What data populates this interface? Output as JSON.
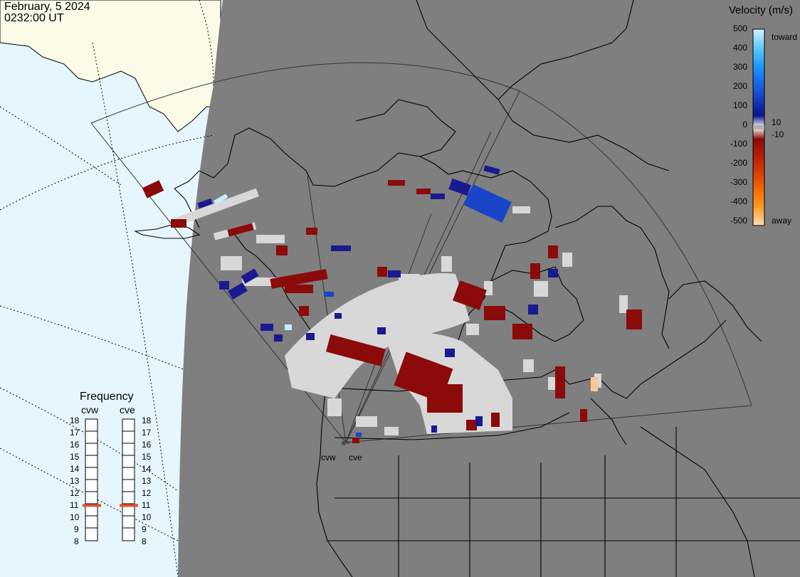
{
  "header": {
    "date": "February, 5 2024",
    "time": "0232:00 UT"
  },
  "velocity_scale": {
    "title": "Velocity (m/s)",
    "ticks": [
      "500",
      "400",
      "300",
      "200",
      "100",
      "0",
      "-100",
      "-200",
      "-300",
      "-400",
      "-500"
    ],
    "toward_label": "toward",
    "away_label": "away",
    "gap_hi": "10",
    "gap_lo": "-10"
  },
  "frequency": {
    "title": "Frequency",
    "radars": [
      {
        "name": "cvw",
        "value": 10.9,
        "indicator_color": "#e0522a"
      },
      {
        "name": "cve",
        "value": 10.9,
        "indicator_color": "#e0522a"
      }
    ],
    "ticks": [
      "18",
      "17",
      "16",
      "15",
      "14",
      "13",
      "12",
      "11",
      "10",
      "9",
      "8"
    ]
  },
  "sites": [
    {
      "name": "cvw"
    },
    {
      "name": "cve"
    }
  ],
  "colors": {
    "night": "#7f7f7f",
    "day_ocean": "#e6f6ff",
    "day_land": "#fbfbe8",
    "ground_scatter": "#d8d8d8",
    "toward_strong": "#1a44c8",
    "toward_weak": "#1a1a90",
    "away_weak": "#8b0a0a",
    "away_strong": "#f7c79a"
  }
}
